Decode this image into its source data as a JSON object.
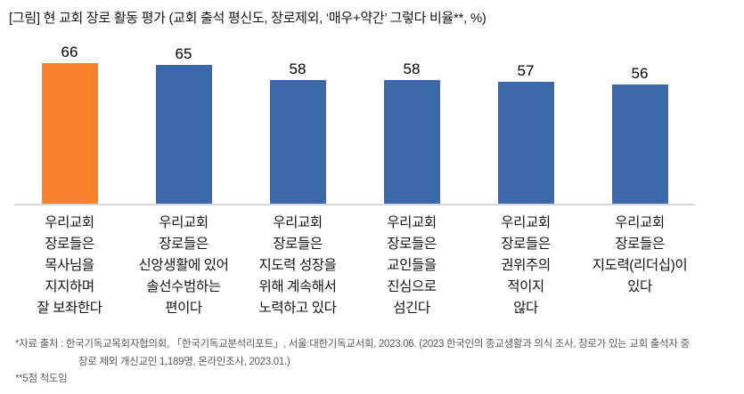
{
  "title": "[그림] 현 교회 장로 활동 평가 (교회 출석 평신도, 장로제외, ‘매우+약간’ 그렇다 비율**, %)",
  "chart_data": {
    "type": "bar",
    "title": "현 교회 장로 활동 평가 (교회 출석 평신도, 장로제외, ‘매우+약간’ 그렇다 비율**, %)",
    "categories": [
      "우리교회\n장로들은\n목사님을\n지지하며\n잘 보좌한다",
      "우리교회\n장로들은\n신앙생활에 있어\n솔선수범하는\n편이다",
      "우리교회\n장로들은\n지도력 성장을\n위해 계속해서\n노력하고 있다",
      "우리교회\n장로들은\n교인들을\n진심으로\n섬긴다",
      "우리교회\n장로들은\n권위주의\n적이지\n않다",
      "우리교회\n장로들은\n지도력(리더십)이\n있다"
    ],
    "values": [
      66,
      65,
      58,
      58,
      57,
      56
    ],
    "unit": "%",
    "ylim": [
      0,
      70
    ],
    "grid": false,
    "legend": false,
    "data_labels": true,
    "bar_colors": [
      "#F8812C",
      "#3A68A8",
      "#3A68A8",
      "#3A68A8",
      "#3A68A8",
      "#3A68A8"
    ],
    "highlight_color": "#F8812C",
    "base_color": "#3A68A8",
    "axis_line_color": "#D8D8D8"
  },
  "footnote": {
    "line1": "*자료 출처 : 한국기독교목회자협의회, 「한국기독교분석리포트」, 서울:대한기독교서회, 2023.06. (2023 한국인의 종교생활과 의식 조사, 장로가 있는 교회 출석자 중",
    "line2": "장로 제외 개신교인 1,189명, 온라인조사, 2023.01.)",
    "line3": "**5점 척도임"
  }
}
